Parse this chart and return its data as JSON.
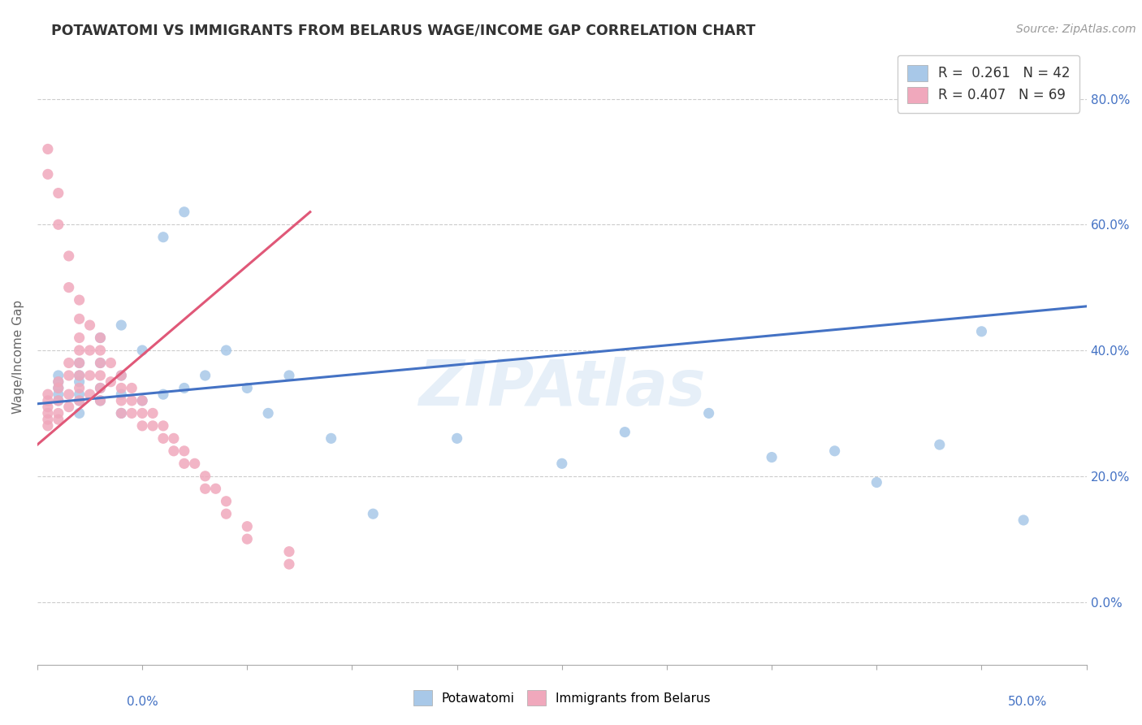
{
  "title": "POTAWATOMI VS IMMIGRANTS FROM BELARUS WAGE/INCOME GAP CORRELATION CHART",
  "source": "Source: ZipAtlas.com",
  "ylabel": "Wage/Income Gap",
  "watermark": "ZIPAtlas",
  "legend_label1": "Potawatomi",
  "legend_label2": "Immigrants from Belarus",
  "R1": 0.261,
  "N1": 42,
  "R2": 0.407,
  "N2": 69,
  "color1": "#a8c8e8",
  "color2": "#f0a8bc",
  "trendline1_color": "#4472c4",
  "trendline2_color": "#e05878",
  "background_color": "#ffffff",
  "xlim": [
    0.0,
    0.5
  ],
  "ylim": [
    -0.1,
    0.88
  ],
  "ytick_vals": [
    0.0,
    0.2,
    0.4,
    0.6,
    0.8
  ],
  "ytick_labels_right": [
    "0.0%",
    "20.0%",
    "40.0%",
    "60.0%",
    "80.0%"
  ],
  "trend1_x0": 0.0,
  "trend1_y0": 0.315,
  "trend1_x1": 0.5,
  "trend1_y1": 0.47,
  "trend2_x0": 0.0,
  "trend2_y0": 0.25,
  "trend2_x1": 0.13,
  "trend2_y1": 0.62,
  "potawatomi_x": [
    0.01,
    0.01,
    0.01,
    0.01,
    0.01,
    0.02,
    0.02,
    0.02,
    0.02,
    0.02,
    0.02,
    0.03,
    0.03,
    0.03,
    0.03,
    0.04,
    0.04,
    0.04,
    0.04,
    0.05,
    0.05,
    0.06,
    0.06,
    0.07,
    0.07,
    0.08,
    0.09,
    0.1,
    0.11,
    0.12,
    0.14,
    0.16,
    0.2,
    0.25,
    0.28,
    0.32,
    0.35,
    0.38,
    0.4,
    0.43,
    0.45,
    0.47
  ],
  "potawatomi_y": [
    0.32,
    0.33,
    0.34,
    0.35,
    0.36,
    0.3,
    0.32,
    0.33,
    0.35,
    0.36,
    0.38,
    0.32,
    0.34,
    0.38,
    0.42,
    0.3,
    0.33,
    0.36,
    0.44,
    0.32,
    0.4,
    0.33,
    0.58,
    0.34,
    0.62,
    0.36,
    0.4,
    0.34,
    0.3,
    0.36,
    0.26,
    0.14,
    0.26,
    0.22,
    0.27,
    0.3,
    0.23,
    0.24,
    0.19,
    0.25,
    0.43,
    0.13
  ],
  "belarus_x": [
    0.005,
    0.005,
    0.005,
    0.005,
    0.005,
    0.005,
    0.005,
    0.005,
    0.01,
    0.01,
    0.01,
    0.01,
    0.01,
    0.01,
    0.01,
    0.015,
    0.015,
    0.015,
    0.015,
    0.015,
    0.015,
    0.02,
    0.02,
    0.02,
    0.02,
    0.02,
    0.02,
    0.02,
    0.02,
    0.025,
    0.025,
    0.025,
    0.025,
    0.03,
    0.03,
    0.03,
    0.03,
    0.03,
    0.03,
    0.035,
    0.035,
    0.04,
    0.04,
    0.04,
    0.04,
    0.045,
    0.045,
    0.045,
    0.05,
    0.05,
    0.05,
    0.055,
    0.055,
    0.06,
    0.06,
    0.065,
    0.065,
    0.07,
    0.07,
    0.075,
    0.08,
    0.08,
    0.085,
    0.09,
    0.09,
    0.1,
    0.1,
    0.12,
    0.12
  ],
  "belarus_y": [
    0.72,
    0.68,
    0.32,
    0.31,
    0.33,
    0.3,
    0.29,
    0.28,
    0.65,
    0.6,
    0.35,
    0.34,
    0.32,
    0.3,
    0.29,
    0.55,
    0.5,
    0.38,
    0.36,
    0.33,
    0.31,
    0.48,
    0.45,
    0.42,
    0.4,
    0.38,
    0.36,
    0.34,
    0.32,
    0.44,
    0.4,
    0.36,
    0.33,
    0.42,
    0.4,
    0.38,
    0.36,
    0.34,
    0.32,
    0.38,
    0.35,
    0.36,
    0.34,
    0.32,
    0.3,
    0.34,
    0.32,
    0.3,
    0.32,
    0.3,
    0.28,
    0.3,
    0.28,
    0.28,
    0.26,
    0.26,
    0.24,
    0.24,
    0.22,
    0.22,
    0.2,
    0.18,
    0.18,
    0.16,
    0.14,
    0.12,
    0.1,
    0.08,
    0.06
  ]
}
